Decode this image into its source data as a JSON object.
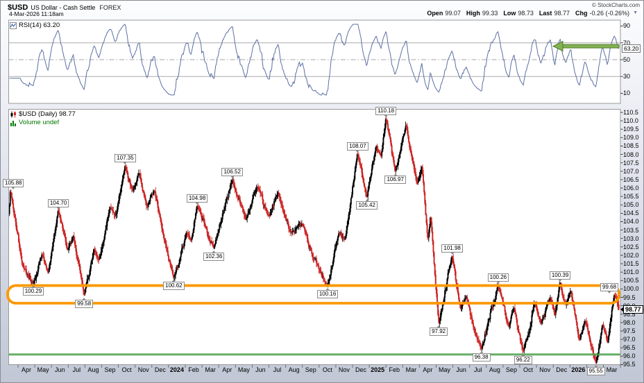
{
  "header": {
    "symbol": "$USD",
    "title": "US Dollar - Cash Settle",
    "exchange": "FOREX",
    "copyright": "© StockCharts.com",
    "datetime": "4-Mar-2026 11:18am",
    "quote_fields": [
      {
        "label": "Open",
        "value": "99.07"
      },
      {
        "label": "High",
        "value": "99.33"
      },
      {
        "label": "Low",
        "value": "98.73"
      },
      {
        "label": "Last",
        "value": "98.77"
      },
      {
        "label": "Chg",
        "value": "-0.26 (-0.26%)"
      }
    ],
    "dropdown_caret": "▼"
  },
  "rsi_panel": {
    "legend": "RSI(14) 63.20",
    "tag_value": "63.20",
    "axis_ticks": [
      90,
      70,
      50,
      30,
      10
    ],
    "overbought": 70,
    "midline": 50,
    "oversold": 30,
    "line_color": "#5b6fa3",
    "arrow": {
      "value": 66,
      "fill": "#84b152",
      "border": "#4e7c2e"
    }
  },
  "main_panel": {
    "legend": "$USD (Daily) 98.77",
    "volume_legend": "Volume undef",
    "last_tag": "98.77",
    "up_color": "#000000",
    "down_color": "#cc2222",
    "orange_box": {
      "price_top": 100.2,
      "price_bottom": 99.15,
      "color": "#fb9902"
    },
    "green_line": {
      "price": 96.1,
      "color": "#4aa04a"
    }
  },
  "y_axis": {
    "min": 95.5,
    "max": 110.5,
    "step": 0.5
  },
  "x_axis": {
    "months": [
      "Apr",
      "May",
      "Jun",
      "Jul",
      "Aug",
      "Sep",
      "Oct",
      "Nov",
      "Dec",
      "2024",
      "Feb",
      "Mar",
      "Apr",
      "May",
      "Jun",
      "Jul",
      "Aug",
      "Sep",
      "Oct",
      "Nov",
      "Dec",
      "2025",
      "Feb",
      "Mar",
      "Apr",
      "May",
      "Jun",
      "Jul",
      "Aug",
      "Sep",
      "Oct",
      "Nov",
      "Dec",
      "2026",
      "Feb",
      "Mar"
    ],
    "bold_labels": [
      "2024",
      "2025",
      "2026"
    ]
  },
  "chart_data": {
    "type": "candlestick",
    "title": "$USD (Daily)",
    "x_range": [
      "Mar-2023",
      "Mar-2026"
    ],
    "ylim": [
      95.5,
      110.5
    ],
    "last_quote": {
      "open": 99.07,
      "high": 99.33,
      "low": 98.73,
      "close": 98.77,
      "chg": -0.26
    },
    "key_levels": {
      "support_zone": [
        99.15,
        100.2
      ],
      "green_support": 96.1
    },
    "rsi": {
      "period": 14,
      "last": 63.2,
      "arrow_level": 66
    },
    "swing_points": [
      {
        "t": -0.56,
        "price": 104.3,
        "label": null
      },
      {
        "t": -0.45,
        "price": 105.88,
        "label": "105.88"
      },
      {
        "t": 0.25,
        "price": 101.5,
        "label": null
      },
      {
        "t": 0.9,
        "price": 100.29,
        "label": "100.29"
      },
      {
        "t": 1.45,
        "price": 102.1,
        "label": null
      },
      {
        "t": 1.8,
        "price": 100.9,
        "label": null
      },
      {
        "t": 2.4,
        "price": 104.7,
        "label": "104.70"
      },
      {
        "t": 2.95,
        "price": 102.3,
        "label": null
      },
      {
        "t": 3.3,
        "price": 103.2,
        "label": null
      },
      {
        "t": 3.95,
        "price": 99.58,
        "label": "99.58"
      },
      {
        "t": 4.55,
        "price": 102.4,
        "label": null
      },
      {
        "t": 4.85,
        "price": 101.7,
        "label": null
      },
      {
        "t": 5.5,
        "price": 104.9,
        "label": null
      },
      {
        "t": 5.85,
        "price": 104.3,
        "label": null
      },
      {
        "t": 6.4,
        "price": 107.35,
        "label": "107.35"
      },
      {
        "t": 6.85,
        "price": 105.8,
        "label": null
      },
      {
        "t": 7.25,
        "price": 106.9,
        "label": null
      },
      {
        "t": 7.7,
        "price": 104.8,
        "label": null
      },
      {
        "t": 8.15,
        "price": 105.9,
        "label": null
      },
      {
        "t": 8.6,
        "price": 103.6,
        "label": null
      },
      {
        "t": 9.3,
        "price": 100.62,
        "label": "100.62"
      },
      {
        "t": 10.1,
        "price": 103.4,
        "label": null
      },
      {
        "t": 10.35,
        "price": 102.8,
        "label": null
      },
      {
        "t": 10.7,
        "price": 104.98,
        "label": "104.98"
      },
      {
        "t": 11.7,
        "price": 102.36,
        "label": "102.36"
      },
      {
        "t": 12.8,
        "price": 106.52,
        "label": "106.52"
      },
      {
        "t": 13.6,
        "price": 104.1,
        "label": null
      },
      {
        "t": 14.3,
        "price": 106.1,
        "label": null
      },
      {
        "t": 15.0,
        "price": 104.3,
        "label": null
      },
      {
        "t": 15.55,
        "price": 105.8,
        "label": null
      },
      {
        "t": 16.3,
        "price": 103.3,
        "label": null
      },
      {
        "t": 17.0,
        "price": 103.9,
        "label": null
      },
      {
        "t": 17.6,
        "price": 101.9,
        "label": null
      },
      {
        "t": 18.0,
        "price": 101.2,
        "label": null
      },
      {
        "t": 18.5,
        "price": 100.16,
        "label": "100.16"
      },
      {
        "t": 19.2,
        "price": 103.4,
        "label": null
      },
      {
        "t": 19.55,
        "price": 102.9,
        "label": null
      },
      {
        "t": 20.3,
        "price": 108.07,
        "label": "108.07"
      },
      {
        "t": 20.85,
        "price": 105.42,
        "label": "105.42"
      },
      {
        "t": 21.4,
        "price": 108.5,
        "label": null
      },
      {
        "t": 21.7,
        "price": 107.8,
        "label": null
      },
      {
        "t": 22.0,
        "price": 110.18,
        "label": "110.18"
      },
      {
        "t": 22.55,
        "price": 106.97,
        "label": "106.97"
      },
      {
        "t": 23.2,
        "price": 109.8,
        "label": null
      },
      {
        "t": 23.85,
        "price": 106.2,
        "label": null
      },
      {
        "t": 24.15,
        "price": 107.3,
        "label": null
      },
      {
        "t": 24.5,
        "price": 102.9,
        "label": null
      },
      {
        "t": 24.67,
        "price": 104.3,
        "label": null
      },
      {
        "t": 25.15,
        "price": 97.92,
        "label": "97.92"
      },
      {
        "t": 25.95,
        "price": 101.98,
        "label": "101.98"
      },
      {
        "t": 26.45,
        "price": 98.8,
        "label": null
      },
      {
        "t": 26.8,
        "price": 99.6,
        "label": null
      },
      {
        "t": 27.25,
        "price": 97.6,
        "label": null
      },
      {
        "t": 27.7,
        "price": 96.38,
        "label": "96.38"
      },
      {
        "t": 28.7,
        "price": 100.26,
        "label": "100.26"
      },
      {
        "t": 29.35,
        "price": 97.7,
        "label": null
      },
      {
        "t": 29.65,
        "price": 98.9,
        "label": null
      },
      {
        "t": 30.2,
        "price": 96.22,
        "label": "96.22"
      },
      {
        "t": 30.9,
        "price": 99.2,
        "label": null
      },
      {
        "t": 31.25,
        "price": 97.9,
        "label": null
      },
      {
        "t": 31.85,
        "price": 99.5,
        "label": null
      },
      {
        "t": 32.1,
        "price": 98.4,
        "label": null
      },
      {
        "t": 32.4,
        "price": 100.39,
        "label": "100.39"
      },
      {
        "t": 32.75,
        "price": 99.0,
        "label": null
      },
      {
        "t": 33.05,
        "price": 99.9,
        "label": null
      },
      {
        "t": 33.55,
        "price": 96.9,
        "label": null
      },
      {
        "t": 33.9,
        "price": 98.2,
        "label": null
      },
      {
        "t": 34.55,
        "price": 95.55,
        "label": "95.55"
      },
      {
        "t": 34.95,
        "price": 97.9,
        "label": null
      },
      {
        "t": 35.25,
        "price": 96.8,
        "label": null
      },
      {
        "t": 35.65,
        "price": 99.68,
        "label": "99.68"
      },
      {
        "t": 35.95,
        "price": 98.77,
        "label": null
      }
    ]
  }
}
